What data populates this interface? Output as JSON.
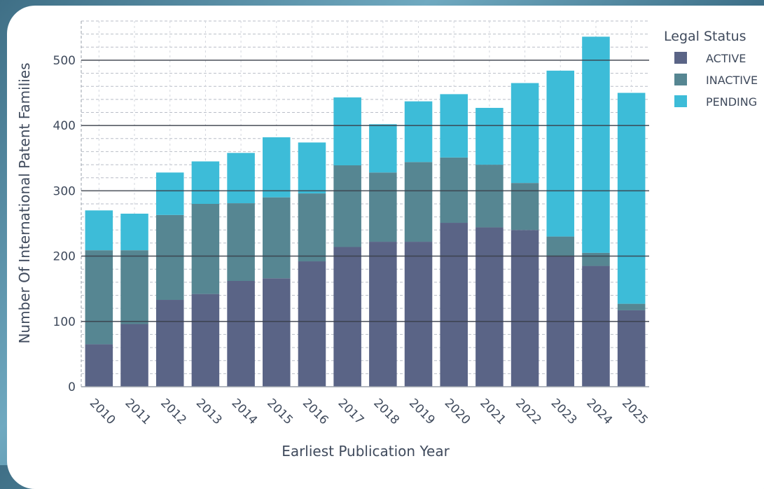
{
  "chart_data": {
    "type": "bar",
    "stacked": true,
    "xlabel": "Earliest Publication Year",
    "ylabel": "Number Of International Patent Families",
    "categories": [
      "2010",
      "2011",
      "2012",
      "2013",
      "2014",
      "2015",
      "2016",
      "2017",
      "2018",
      "2019",
      "2020",
      "2021",
      "2022",
      "2023",
      "2024",
      "2025"
    ],
    "ylim": [
      0,
      560
    ],
    "yticks": [
      0,
      100,
      200,
      300,
      400,
      500
    ],
    "grid": true,
    "legend": {
      "title": "Legal Status",
      "position": "right"
    },
    "series": [
      {
        "name": "ACTIVE",
        "color": "#5a6486",
        "values": [
          65,
          96,
          133,
          142,
          162,
          166,
          192,
          214,
          222,
          222,
          251,
          244,
          240,
          200,
          185,
          117
        ]
      },
      {
        "name": "INACTIVE",
        "color": "#568692",
        "values": [
          144,
          113,
          130,
          138,
          119,
          124,
          104,
          125,
          106,
          122,
          100,
          96,
          72,
          30,
          20,
          10
        ]
      },
      {
        "name": "PENDING",
        "color": "#3dbcd8",
        "values": [
          61,
          56,
          65,
          65,
          77,
          92,
          78,
          104,
          74,
          93,
          97,
          87,
          153,
          254,
          331,
          323
        ]
      }
    ]
  }
}
